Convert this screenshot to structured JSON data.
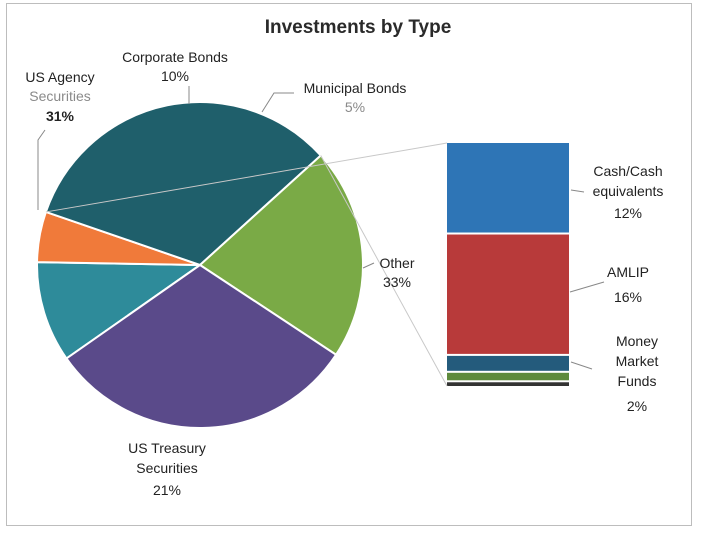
{
  "chart_data": {
    "type": "pie",
    "title": "Investments by Type",
    "slices": [
      {
        "name": "Corporate Bonds",
        "value": 10,
        "label": "10%",
        "color": "#2e8b9a"
      },
      {
        "name": "Municipal Bonds",
        "value": 5,
        "label": "5%",
        "color": "#f07a3a"
      },
      {
        "name": "Other",
        "value": 33,
        "label": "33%",
        "color": "#1f5f6b"
      },
      {
        "name": "US Treasury Securities",
        "value": 21,
        "label": "21%",
        "color": "#7aaa46"
      },
      {
        "name": "US Agency Securities",
        "value": 31,
        "label": "31%",
        "color": "#5a4a8a"
      }
    ],
    "breakdown_of": "Other",
    "breakdown": [
      {
        "name": "Cash/Cash equivalents",
        "value": 12,
        "label": "12%",
        "color": "#2e75b6"
      },
      {
        "name": "AMLIP",
        "value": 16,
        "label": "16%",
        "color": "#b83a3a"
      },
      {
        "name": "Money Market Funds",
        "value": 2,
        "label": "2%",
        "color": "#245b7c"
      },
      {
        "value": 1,
        "color": "#5e8a3c"
      },
      {
        "value": 0.5,
        "color": "#333333"
      }
    ],
    "legend": "none"
  },
  "labels": {
    "corporate_bonds_line1": "Corporate Bonds",
    "municipal_bonds_line1": "Municipal Bonds",
    "us_agency_line1": "US Agency",
    "us_agency_line2": "Securities",
    "other_line1": "Other",
    "us_treasury_line1": "US Treasury",
    "us_treasury_line2": "Securities",
    "cash_line1": "Cash/Cash",
    "cash_line2": "equivalents",
    "amlip_line1": "AMLIP",
    "mmf_line1": "Money",
    "mmf_line2": "Market",
    "mmf_line3": "Funds"
  }
}
